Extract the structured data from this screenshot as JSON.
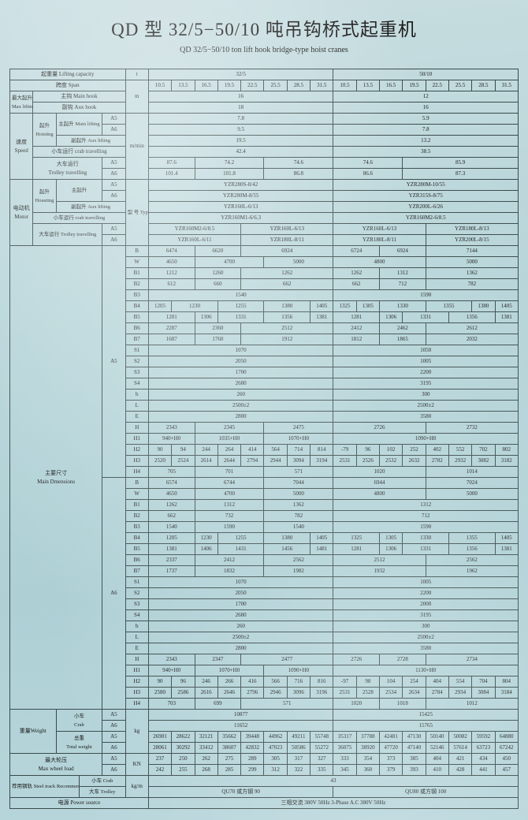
{
  "title_cn": "QD 型 32/5−50/10 吨吊钩桥式起重机",
  "title_en": "QD 32/5−50/10 ton lift hook bridge-type hoist cranes",
  "header": {
    "capacity": {
      "cn": "起重量",
      "en": "Lifting capacity",
      "unit": "t"
    },
    "span": {
      "cn": "跨度",
      "en": "Span",
      "unit": "m"
    },
    "cap_vals": [
      "32/5",
      "50/10"
    ],
    "span_vals": [
      "10.5",
      "13.5",
      "16.5",
      "19.5",
      "22.5",
      "25.5",
      "28.5",
      "31.5",
      "10.5",
      "13.5",
      "16.5",
      "19.5",
      "22.5",
      "25.5",
      "28.5",
      "31.5"
    ]
  },
  "hookH": {
    "cn": "最大起升高度",
    "en": "Max lifting height",
    "main": {
      "lbl": "主钩 Main hook",
      "v": [
        "16",
        "12"
      ]
    },
    "aux": {
      "lbl": "副钩 Aux hook",
      "v": [
        "18",
        "16"
      ]
    }
  },
  "speed": {
    "cn": "速度",
    "en": "Speed",
    "unit": "m/min",
    "hoist": {
      "cn": "起升",
      "en": "Hoisting",
      "main": {
        "lbl": "主起升 Main lifting",
        "a5": "7.8",
        "a6": "9.5",
        "b5": "5.9",
        "b6": "7.8"
      },
      "aux": {
        "lbl": "副起升 Aux lifting",
        "a": "19.5",
        "b": "13.2"
      }
    },
    "crab": {
      "cn": "小车运行",
      "en": "crab travelling",
      "a": "42.4",
      "b": "38.5"
    },
    "trolley": {
      "cn": "大车运行",
      "en": "Trolley travelling",
      "a5": [
        "87.6",
        "74.2",
        "74.6",
        "74.6",
        "85.9"
      ],
      "a6": [
        "101.4",
        "101.8",
        "86.8",
        "86.6",
        "87.3"
      ]
    }
  },
  "motor": {
    "cn": "电动机",
    "en": "Motor",
    "type": "型 号 Type/ Kw",
    "hoist": {
      "cn": "起升",
      "en": "Housting",
      "main": {
        "lbl": "主起升",
        "a5": "YZR280S-8/42",
        "a6": "YZR280M-8/55",
        "b5": "YZR280M-10/55",
        "b6": "YZR315S-8/75"
      },
      "aux": {
        "lbl": "副起升 Aux lifting",
        "a": "YZR160L-6/13",
        "b": "YZR200L-6/26"
      }
    },
    "crab": {
      "lbl": "小车运行 crab travelling",
      "a": "YZR160M1-6/6.3",
      "b": "YZR160M2-6/8.5"
    },
    "trolley": {
      "lbl": "大车运行 Trolley travelling",
      "a5": [
        "YZR160M2-6/8.5",
        "YZR160L-6/13",
        "YZR160L-6/13",
        "YZR180L-8/13"
      ],
      "a6": [
        "YZR160L-6/11",
        "YZR180L-8/11",
        "YZR180L-8/11",
        "YZR200L-8/15"
      ]
    }
  },
  "dims": {
    "cn": "主要尺寸",
    "en": "Main Dmensions",
    "A5": {
      "B": [
        "6474",
        "6620",
        "6924",
        "6724",
        "6924",
        "7144"
      ],
      "W": [
        "4650",
        "4700",
        "5000",
        "4800",
        "5000"
      ],
      "B1": [
        "1212",
        "1260",
        "1262",
        "1262",
        "1312",
        "1362"
      ],
      "B2": [
        "612",
        "660",
        "662",
        "662",
        "712",
        "782"
      ],
      "B3": [
        "1540",
        "1590"
      ],
      "B4": [
        "1205",
        "1230",
        "1255",
        "1380",
        "1405",
        "1325",
        "1305",
        "1330",
        "1355",
        "1380",
        "1405"
      ],
      "B5": [
        "1281",
        "1306",
        "1331",
        "1356",
        "1381",
        "1281",
        "1306",
        "1331",
        "1356",
        "1381"
      ],
      "B6": [
        "2287",
        "2360",
        "2512",
        "2412",
        "2462",
        "2612"
      ],
      "B7": [
        "1687",
        "1760",
        "1912",
        "1812",
        "1865",
        "2032"
      ],
      "S1": [
        "1070",
        "1050"
      ],
      "S2": [
        "2050",
        "1005"
      ],
      "S3": [
        "1700",
        "2200"
      ],
      "S4": [
        "2680",
        "3195"
      ],
      "b": [
        "260",
        "300"
      ],
      "L": [
        "2500±2",
        "2500±2"
      ],
      "E": [
        "2800",
        "3580"
      ],
      "H": [
        "2343",
        "2345",
        "2475",
        "2726",
        "2732"
      ],
      "H1": [
        "940+H0",
        "1035+H0",
        "1070+H0",
        "1090+H0"
      ],
      "H2": [
        "90",
        "94",
        "244",
        "264",
        "414",
        "564",
        "714",
        "814",
        "-79",
        "96",
        "102",
        "252",
        "402",
        "552",
        "702",
        "802"
      ],
      "H3": [
        "2520",
        "2524",
        "2614",
        "2644",
        "2794",
        "2944",
        "3094",
        "3194",
        "2531",
        "2526",
        "2532",
        "2632",
        "2782",
        "2932",
        "3082",
        "3182"
      ],
      "H4": [
        "705",
        "701",
        "571",
        "1020",
        "1014"
      ]
    },
    "A6": {
      "B": [
        "6574",
        "6744",
        "7044",
        "6944",
        "7024"
      ],
      "W": [
        "4650",
        "4700",
        "5000",
        "4800",
        "5000"
      ],
      "B1": [
        "1262",
        "1312",
        "1362",
        "1312"
      ],
      "B2": [
        "662",
        "732",
        "782",
        "712"
      ],
      "B3": [
        "1540",
        "1590",
        "1540",
        "1590"
      ],
      "B4": [
        "1205",
        "1230",
        "1255",
        "1380",
        "1405",
        "1325",
        "1305",
        "1330",
        "1355",
        "1405"
      ],
      "B5": [
        "1381",
        "1406",
        "1431",
        "1456",
        "1481",
        "1281",
        "1306",
        "1331",
        "1356",
        "1381"
      ],
      "B6": [
        "2337",
        "2412",
        "2562",
        "2512",
        "2562"
      ],
      "B7": [
        "1737",
        "1832",
        "1982",
        "1932",
        "1962"
      ],
      "S1": [
        "1070",
        "1005"
      ],
      "S2": [
        "2050",
        "2200"
      ],
      "S3": [
        "1700",
        "2000"
      ],
      "S4": [
        "2680",
        "3195"
      ],
      "b": [
        "260",
        "300"
      ],
      "L": [
        "2500±2",
        "2500±2"
      ],
      "E": [
        "2800",
        "3580"
      ],
      "H": [
        "2343",
        "2347",
        "2477",
        "2726",
        "2728",
        "2734"
      ],
      "H1": [
        "940+H0",
        "1070+H0",
        "1090+H0",
        "1130+H0"
      ],
      "H2": [
        "90",
        "96",
        "246",
        "266",
        "416",
        "566",
        "716",
        "816",
        "-97",
        "98",
        "104",
        "254",
        "404",
        "554",
        "704",
        "804"
      ],
      "H3": [
        "2580",
        "2586",
        "2616",
        "2646",
        "2796",
        "2946",
        "3096",
        "3196",
        "2531",
        "2528",
        "2534",
        "2634",
        "2784",
        "2934",
        "3084",
        "3184"
      ],
      "H4": [
        "703",
        "699",
        "571",
        "1020",
        "1018",
        "1012"
      ]
    }
  },
  "weight": {
    "cn": "重量",
    "en": "Weight",
    "unit": "kg",
    "crab": {
      "cn": "小车",
      "en": "Crab",
      "a5": "10877",
      "a6": "11652",
      "b5": "15425",
      "b6": "15765"
    },
    "total": {
      "cn": "总重",
      "en": "Total weight",
      "a5": [
        "26901",
        "28622",
        "32121",
        "35662",
        "39448",
        "44962",
        "49211",
        "55748",
        "35317",
        "37788",
        "42481",
        "47130",
        "50140",
        "50082",
        "59592",
        "64880"
      ],
      "a6": [
        "28061",
        "30292",
        "33412",
        "38607",
        "42832",
        "47023",
        "50586",
        "55272",
        "36075",
        "38920",
        "47720",
        "47140",
        "52146",
        "57614",
        "63723",
        "67242"
      ]
    }
  },
  "wheel": {
    "cn": "最大轮压",
    "en": "Max wheel load",
    "unit": "KN",
    "a5": [
      "237",
      "250",
      "262",
      "275",
      "289",
      "305",
      "317",
      "327",
      "333",
      "354",
      "373",
      "385",
      "404",
      "421",
      "434",
      "450"
    ],
    "a6": [
      "242",
      "255",
      "268",
      "285",
      "299",
      "312",
      "322",
      "335",
      "345",
      "360",
      "379",
      "393",
      "410",
      "428",
      "441",
      "457"
    ]
  },
  "track": {
    "cn": "荐用钢轨 Steel track Recommended",
    "crab": "小车 Crab",
    "trolley": "大车 Trolley",
    "crab_v": "43",
    "trolley_v": [
      "QU70 或方钢 90",
      "QU80 或方钢 100"
    ],
    "unit": "kg/m"
  },
  "power": {
    "cn": "电源",
    "en": "Power source",
    "v": "三相交流 380V  50Hz  3-Phase A.C 380V  50Hz"
  }
}
